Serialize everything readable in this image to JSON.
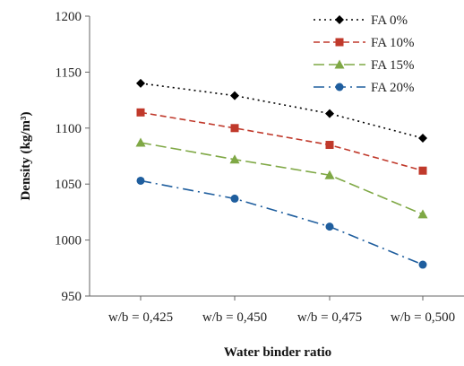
{
  "chart_data": {
    "type": "line",
    "title": "",
    "xlabel": "Water binder ratio",
    "ylabel": "Density (kg/m³)",
    "categories": [
      "w/b = 0,425",
      "w/b = 0,450",
      "w/b = 0,475",
      "w/b = 0,500"
    ],
    "ylim": [
      950,
      1200
    ],
    "yticks": [
      "950",
      "1000",
      "1050",
      "1100",
      "1150",
      "1200"
    ],
    "grid": false,
    "legend_position": "top-right",
    "series": [
      {
        "name": "FA 0%",
        "values": [
          1140,
          1129,
          1113,
          1091
        ],
        "color": "#000000",
        "marker": "diamond",
        "dash": "dotted"
      },
      {
        "name": "FA 10%",
        "values": [
          1114,
          1100,
          1085,
          1062
        ],
        "color": "#c0392b",
        "marker": "square",
        "dash": "dashed"
      },
      {
        "name": "FA 15%",
        "values": [
          1087,
          1072,
          1058,
          1023
        ],
        "color": "#7fa845",
        "marker": "triangle",
        "dash": "longdash"
      },
      {
        "name": "FA 20%",
        "values": [
          1053,
          1037,
          1012,
          978
        ],
        "color": "#1f5e9e",
        "marker": "circle",
        "dash": "dashdot"
      }
    ]
  }
}
